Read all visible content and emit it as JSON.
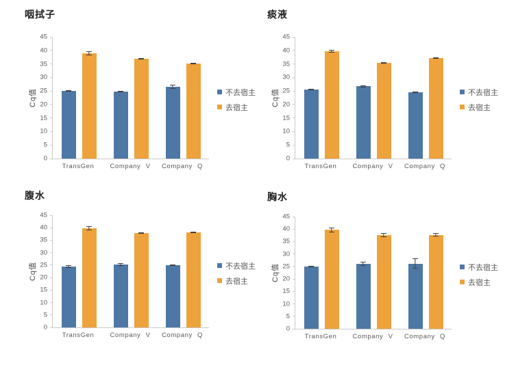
{
  "page": {
    "background": "#ffffff"
  },
  "colors": {
    "series_blue": "#4d78a5",
    "series_orange": "#eda23c",
    "axis": "#c9c9c9",
    "tick_text": "#595959",
    "error_bar": "#3f3f3f",
    "title_text": "#1f1f1f"
  },
  "chart_data": [
    {
      "type": "bar",
      "title": "咽拭子",
      "ylabel": "Cq值",
      "ylim": [
        0,
        45
      ],
      "ytick_step": 5,
      "grid": false,
      "legend_position": "right",
      "categories": [
        "TransGen",
        "Company V",
        "Company Q"
      ],
      "series": [
        {
          "name": "不去宿主",
          "color": "#4d78a5",
          "values": [
            25.0,
            24.8,
            26.5
          ],
          "errors": [
            0.2,
            0.2,
            0.7
          ]
        },
        {
          "name": "去宿主",
          "color": "#eda23c",
          "values": [
            39.0,
            36.8,
            35.2
          ],
          "errors": [
            0.7,
            0.2,
            0.3
          ]
        }
      ]
    },
    {
      "type": "bar",
      "title": "痰液",
      "ylabel": "Cq值",
      "ylim": [
        0,
        45
      ],
      "ytick_step": 5,
      "grid": false,
      "legend_position": "right",
      "categories": [
        "TransGen",
        "Company V",
        "Company Q"
      ],
      "series": [
        {
          "name": "不去宿主",
          "color": "#4d78a5",
          "values": [
            25.6,
            26.7,
            24.5
          ],
          "errors": [
            0.2,
            0.3,
            0.2
          ]
        },
        {
          "name": "去宿主",
          "color": "#eda23c",
          "values": [
            39.8,
            35.4,
            37.2
          ],
          "errors": [
            0.5,
            0.3,
            0.3
          ]
        }
      ]
    },
    {
      "type": "bar",
      "title": "腹水",
      "ylabel": "Cq值",
      "ylim": [
        0,
        45
      ],
      "ytick_step": 5,
      "grid": false,
      "legend_position": "right",
      "categories": [
        "TransGen",
        "Company V",
        "Company Q"
      ],
      "series": [
        {
          "name": "不去宿主",
          "color": "#4d78a5",
          "values": [
            24.5,
            25.3,
            25.0
          ],
          "errors": [
            0.5,
            0.5,
            0.2
          ]
        },
        {
          "name": "去宿主",
          "color": "#eda23c",
          "values": [
            39.8,
            37.8,
            38.2
          ],
          "errors": [
            0.8,
            0.2,
            0.3
          ]
        }
      ]
    },
    {
      "type": "bar",
      "title": "胸水",
      "ylabel": "Cq值",
      "ylim": [
        0,
        45
      ],
      "ytick_step": 5,
      "grid": false,
      "legend_position": "right",
      "categories": [
        "TransGen",
        "Company V",
        "Company Q"
      ],
      "series": [
        {
          "name": "不去宿主",
          "color": "#4d78a5",
          "values": [
            25.0,
            26.0,
            26.2
          ],
          "errors": [
            0.3,
            0.8,
            2.0
          ]
        },
        {
          "name": "去宿主",
          "color": "#eda23c",
          "values": [
            39.7,
            37.6,
            37.7
          ],
          "errors": [
            1.0,
            0.9,
            0.6
          ]
        }
      ]
    }
  ]
}
